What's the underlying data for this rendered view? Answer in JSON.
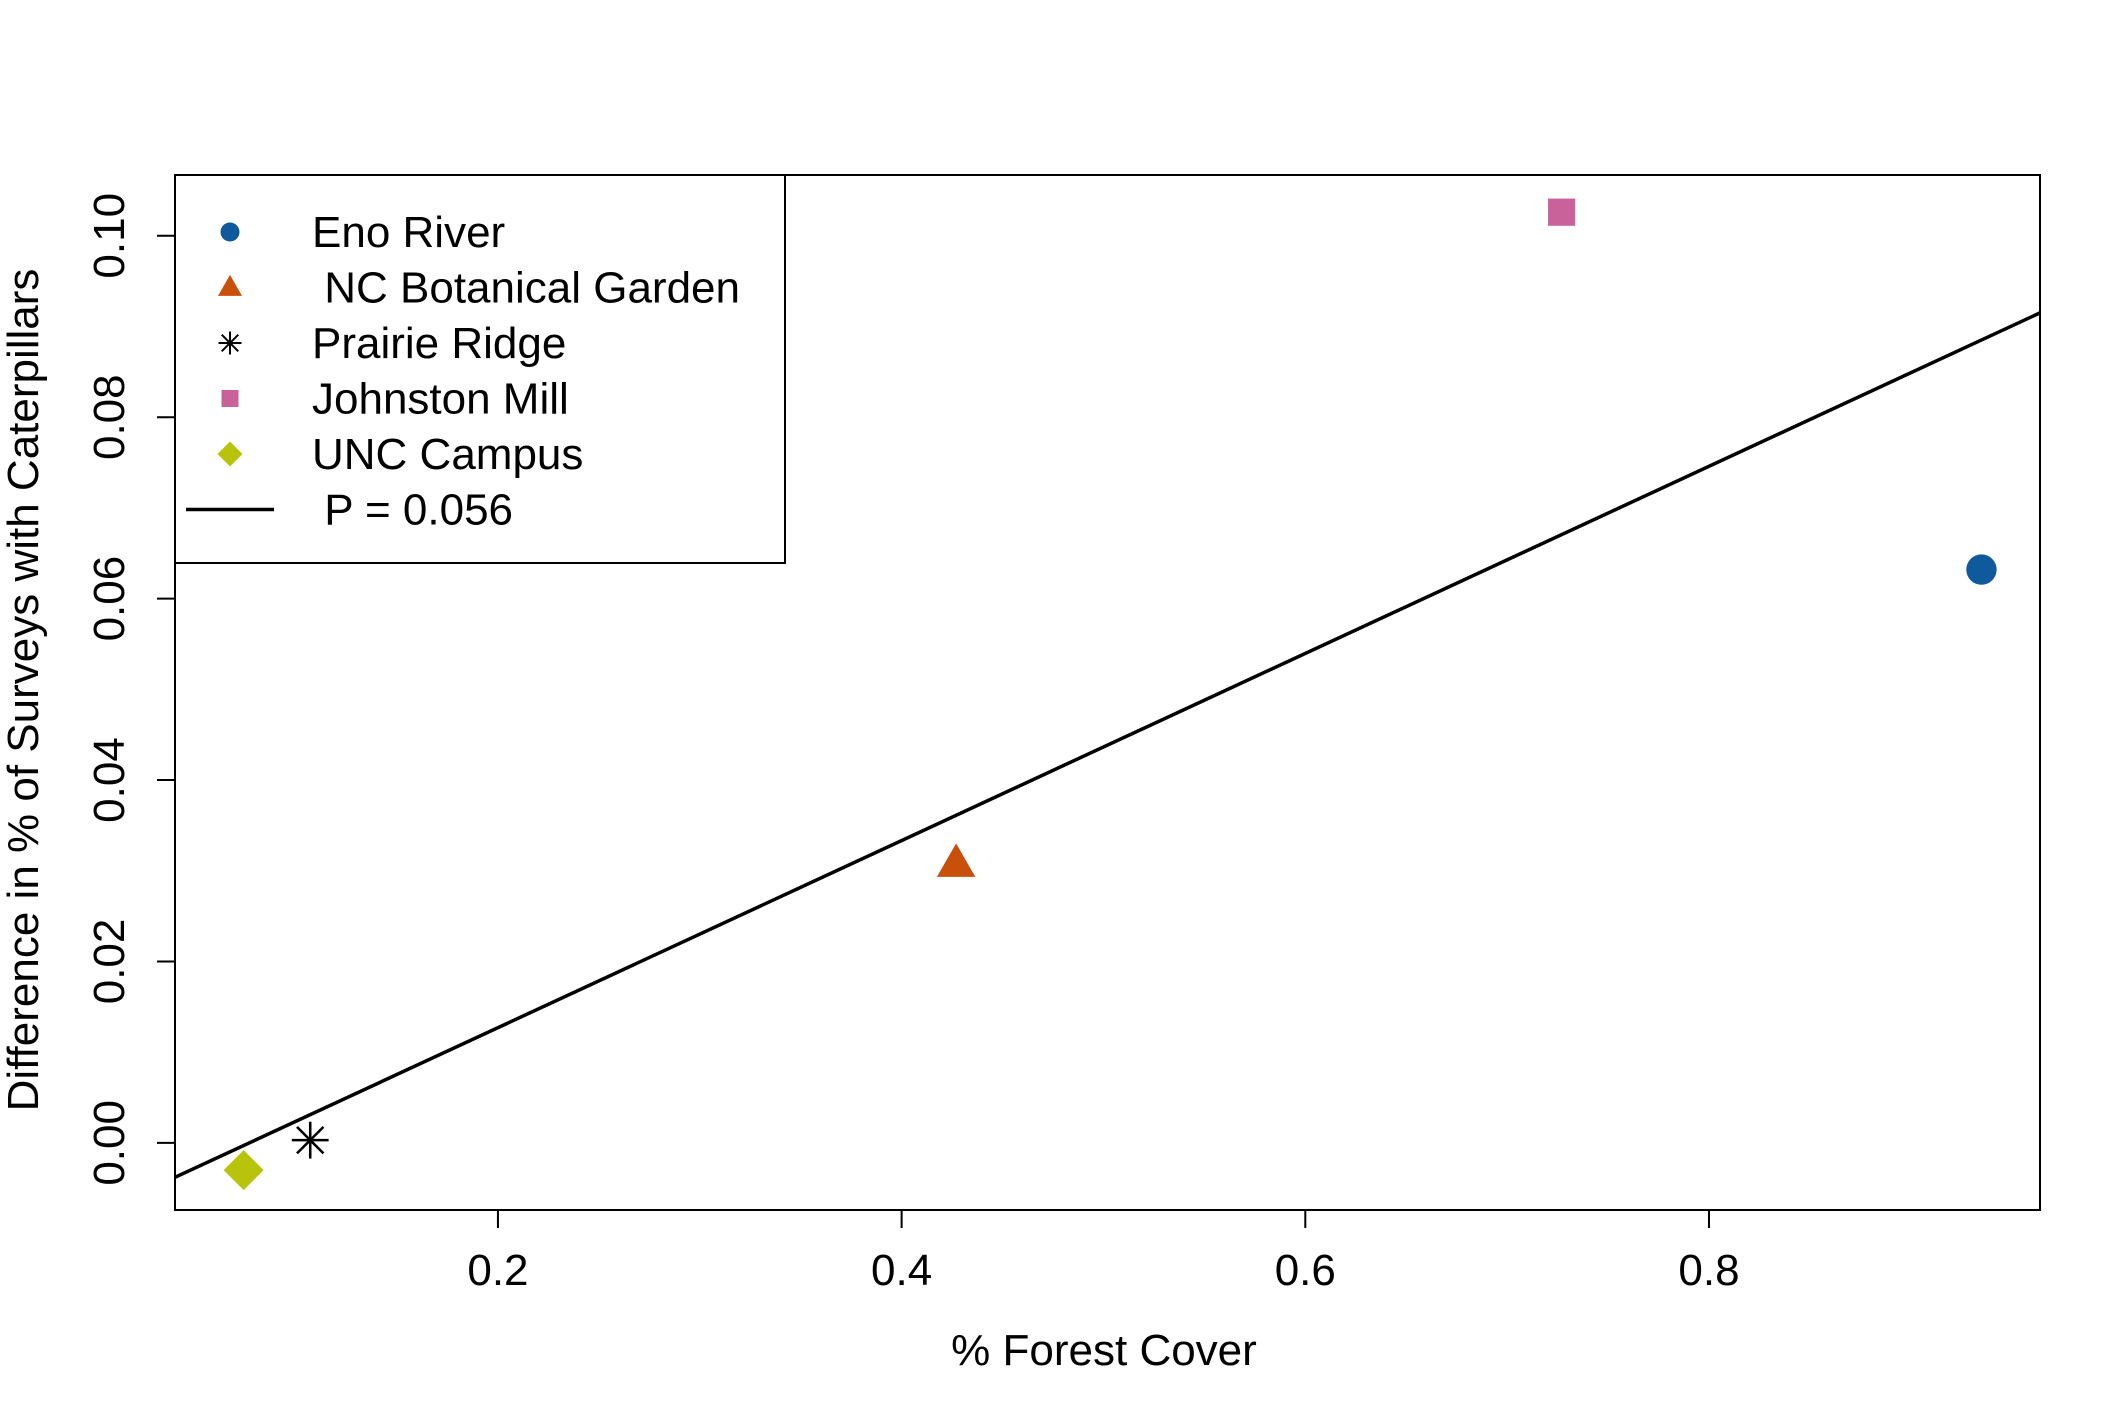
{
  "chart_data": {
    "type": "scatter",
    "title": "",
    "xlabel": "% Forest Cover",
    "ylabel": "Difference in  % of Surveys with Caterpillars",
    "xlim": [
      0.04,
      0.964
    ],
    "ylim": [
      -0.0074,
      0.1067
    ],
    "xticks": [
      0.2,
      0.4,
      0.6,
      0.8
    ],
    "xtick_labels": [
      "0.2",
      "0.4",
      "0.6",
      "0.8"
    ],
    "yticks": [
      0.0,
      0.02,
      0.04,
      0.06,
      0.08,
      0.1
    ],
    "ytick_labels": [
      "0.00",
      "0.02",
      "0.04",
      "0.06",
      "0.08",
      "0.10"
    ],
    "grid": false,
    "legend_position": "top-left",
    "series": [
      {
        "name": "Eno River",
        "marker": "circle",
        "color": "#0e5a9c",
        "x": [
          0.935
        ],
        "y": [
          0.0632
        ]
      },
      {
        "name": " NC Botanical Garden",
        "marker": "triangle",
        "color": "#c8500a",
        "x": [
          0.427
        ],
        "y": [
          0.0308
        ]
      },
      {
        "name": "Prairie Ridge",
        "marker": "asterisk",
        "color": "#000000",
        "x": [
          0.107
        ],
        "y": [
          0.0003
        ]
      },
      {
        "name": "Johnston Mill",
        "marker": "square",
        "color": "#c9619b",
        "x": [
          0.727
        ],
        "y": [
          0.1026
        ]
      },
      {
        "name": "UNC Campus",
        "marker": "diamond",
        "color": "#b8c40c",
        "x": [
          0.074
        ],
        "y": [
          -0.003
        ]
      }
    ],
    "fit_line": {
      "label": " P = 0.056",
      "color": "#000000",
      "x": [
        0.04,
        0.964
      ],
      "y": [
        -0.0038,
        0.0915
      ]
    }
  }
}
